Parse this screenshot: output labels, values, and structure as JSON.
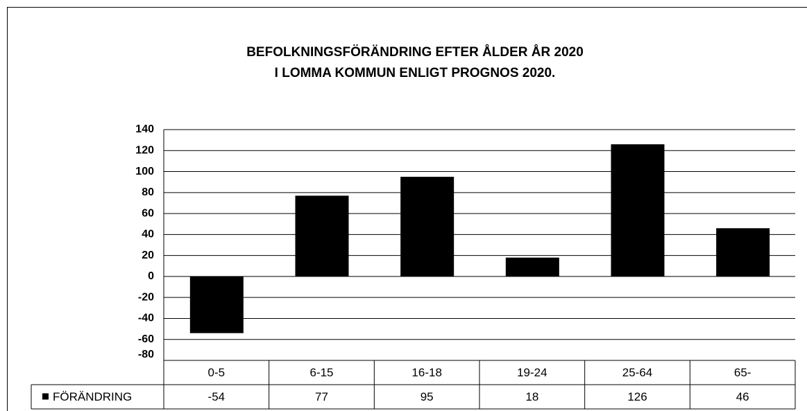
{
  "chart_data": {
    "type": "bar",
    "title_lines": [
      "BEFOLKNINGSFÖRÄNDRING  EFTER ÅLDER ÅR 2020",
      "I LOMMA KOMMUN  ENLIGT PROGNOS 2020."
    ],
    "categories": [
      "0-5",
      "6-15",
      "16-18",
      "19-24",
      "25-64",
      "65-"
    ],
    "series": [
      {
        "name": "FÖRÄNDRING",
        "color": "#000000",
        "values": [
          -54,
          77,
          95,
          18,
          126,
          46
        ]
      }
    ],
    "ylim": [
      -80,
      140
    ],
    "yticks": [
      -80,
      -60,
      -40,
      -20,
      0,
      20,
      40,
      60,
      80,
      100,
      120,
      140
    ],
    "grid": true,
    "data_table": true
  }
}
